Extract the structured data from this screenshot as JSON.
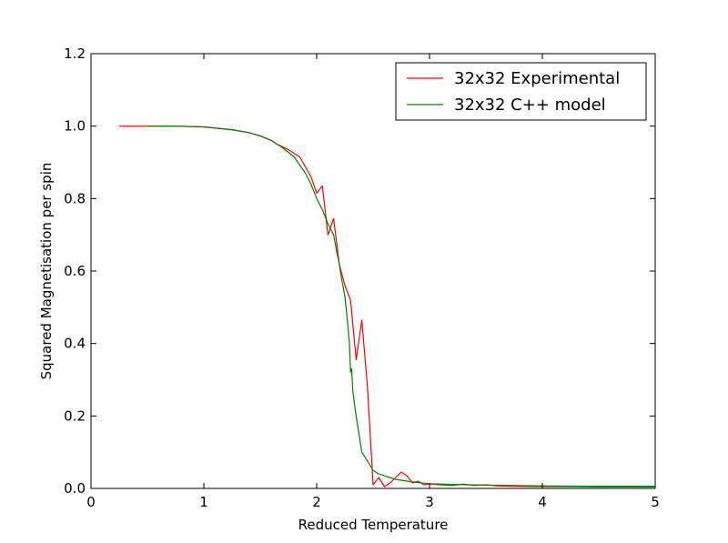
{
  "chart_data": {
    "type": "line",
    "title": "",
    "xlabel": "Reduced Temperature",
    "ylabel": "Squared Magnetisation per spin",
    "xlim": [
      0,
      5
    ],
    "ylim": [
      0,
      1.2
    ],
    "xticks": [
      0,
      1,
      2,
      3,
      4,
      5
    ],
    "xtick_labels": [
      "0",
      "1",
      "2",
      "3",
      "4",
      "5"
    ],
    "yticks": [
      0,
      0.2,
      0.4,
      0.6,
      0.8,
      1.0,
      1.2
    ],
    "ytick_labels": [
      "0.0",
      "0.2",
      "0.4",
      "0.6",
      "0.8",
      "1.0",
      "1.2"
    ],
    "grid": false,
    "legend_position": "top-right",
    "series": [
      {
        "name": "32x32 Experimental",
        "color": "#ff0000",
        "x": [
          0.25,
          0.5,
          0.75,
          1.0,
          1.25,
          1.4,
          1.5,
          1.6,
          1.65,
          1.75,
          1.85,
          1.95,
          2.0,
          2.05,
          2.1,
          2.15,
          2.2,
          2.25,
          2.3,
          2.35,
          2.4,
          2.45,
          2.5,
          2.55,
          2.6,
          2.65,
          2.7,
          2.75,
          2.8,
          2.85,
          2.9,
          2.95,
          3.0,
          3.1,
          3.2,
          3.3,
          3.4,
          3.5,
          3.6,
          3.75,
          4.0,
          4.25,
          4.5,
          4.75,
          5.0
        ],
        "y": [
          1.0,
          1.0,
          1.0,
          0.998,
          0.99,
          0.982,
          0.973,
          0.96,
          0.95,
          0.935,
          0.915,
          0.86,
          0.815,
          0.835,
          0.7,
          0.745,
          0.62,
          0.56,
          0.52,
          0.355,
          0.465,
          0.28,
          0.01,
          0.03,
          0.005,
          0.015,
          0.03,
          0.045,
          0.035,
          0.015,
          0.02,
          0.01,
          0.012,
          0.01,
          0.008,
          0.012,
          0.008,
          0.01,
          0.007,
          0.006,
          0.005,
          0.005,
          0.004,
          0.004,
          0.004
        ]
      },
      {
        "name": "32x32 C++ model",
        "color": "#008000",
        "x": [
          0.5,
          0.75,
          1.0,
          1.25,
          1.4,
          1.5,
          1.6,
          1.7,
          1.8,
          1.9,
          1.95,
          2.0,
          2.05,
          2.1,
          2.15,
          2.18,
          2.2,
          2.22,
          2.25,
          2.27,
          2.29,
          2.3,
          2.31,
          2.32,
          2.34,
          2.36,
          2.38,
          2.4,
          2.42,
          2.44,
          2.46,
          2.48,
          2.5,
          2.55,
          2.6,
          2.7,
          2.8,
          2.9,
          3.0,
          3.2,
          3.5,
          4.0,
          4.5,
          5.0
        ],
        "y": [
          1.0,
          1.0,
          0.998,
          0.99,
          0.982,
          0.973,
          0.96,
          0.94,
          0.915,
          0.87,
          0.84,
          0.8,
          0.77,
          0.73,
          0.7,
          0.65,
          0.62,
          0.58,
          0.53,
          0.47,
          0.4,
          0.32,
          0.33,
          0.27,
          0.22,
          0.18,
          0.14,
          0.1,
          0.09,
          0.08,
          0.07,
          0.06,
          0.05,
          0.04,
          0.035,
          0.025,
          0.02,
          0.016,
          0.013,
          0.011,
          0.009,
          0.007,
          0.006,
          0.006
        ]
      }
    ]
  }
}
